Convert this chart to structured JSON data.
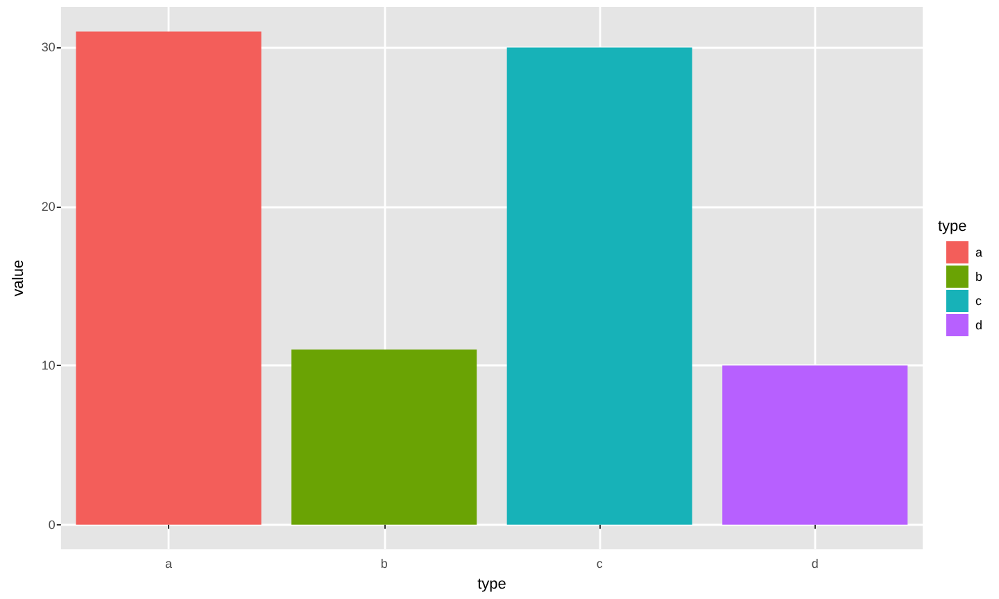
{
  "chart_data": {
    "type": "bar",
    "categories": [
      "a",
      "b",
      "c",
      "d"
    ],
    "series": [
      {
        "name": "a",
        "color": "#f35e5a",
        "values": [
          31,
          null,
          null,
          null
        ]
      },
      {
        "name": "b",
        "color": "#6aa304",
        "values": [
          null,
          11,
          null,
          null
        ]
      },
      {
        "name": "c",
        "color": "#17b2b8",
        "values": [
          null,
          null,
          30,
          null
        ]
      },
      {
        "name": "d",
        "color": "#b760ff",
        "values": [
          null,
          null,
          null,
          10
        ]
      }
    ],
    "xlabel": "type",
    "ylabel": "value",
    "legend_title": "type",
    "legend": "right",
    "ylim": [
      -1.55,
      32.55
    ],
    "yticks": [
      0,
      10,
      20,
      30
    ],
    "grid": true
  }
}
